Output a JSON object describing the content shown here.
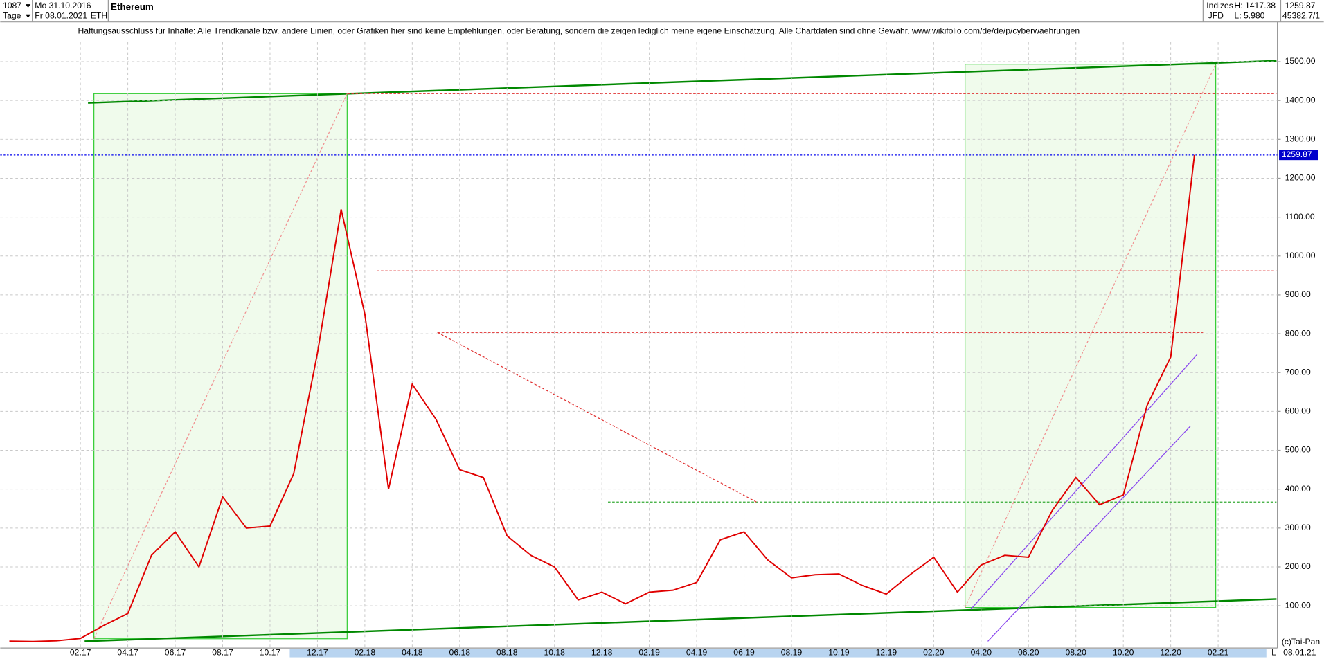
{
  "header": {
    "count": "1087",
    "period": "Tage",
    "start": "Mo 31.10.2016",
    "end": "Fr 08.01.2021",
    "symbol": "ETH",
    "exchange_group": "Indizes",
    "broker": "JFD",
    "high": "H: 1417.38",
    "low": "L: 5.980",
    "close": "1259.87",
    "volume": "45382.7/1",
    "disclaimer": "Haftungsausschluss für Inhalte: Alle Trendkanäle bzw. andere Linien, oder Grafiken hier sind keine Empfehlungen, oder Beratung, sondern die zeigen lediglich meine eigene Einschätzung. Alle Chartdaten sind ohne Gewähr.  www.wikifolio.com/de/de/p/cyberwaehrungen"
  },
  "footer": {
    "copyright": "(c)Tai-Pan",
    "date": "08.01.21",
    "scale": "L"
  },
  "chart_data": {
    "type": "line",
    "title": "Ethereum",
    "categories": [
      null,
      null,
      null,
      "02.17",
      null,
      "04.17",
      null,
      "06.17",
      null,
      "08.17",
      null,
      "10.17",
      null,
      "12.17",
      null,
      "02.18",
      null,
      "04.18",
      null,
      "06.18",
      null,
      "08.18",
      null,
      "10.18",
      null,
      "12.18",
      null,
      "02.19",
      null,
      "04.19",
      null,
      "06.19",
      null,
      "08.19",
      null,
      "10.19",
      null,
      "12.19",
      null,
      "02.20",
      null,
      "04.20",
      null,
      "06.20",
      null,
      "08.20",
      null,
      "10.20",
      null,
      "12.20",
      null,
      "02.21"
    ],
    "series": [
      {
        "color": "#e00000",
        "values": [
          9,
          8,
          10,
          16,
          50,
          80,
          230,
          290,
          200,
          380,
          300,
          305,
          440,
          750,
          1120,
          850,
          400,
          670,
          580,
          450,
          430,
          280,
          230,
          200,
          115,
          135,
          105,
          135,
          140,
          160,
          270,
          290,
          218,
          172,
          180,
          182,
          152,
          130,
          180,
          225,
          135,
          205,
          230,
          225,
          345,
          430,
          360,
          385,
          615,
          740,
          1259.87,
          null
        ]
      }
    ],
    "current_price": {
      "value": 1259.87,
      "label": "1259.87"
    },
    "ylim": [
      0,
      1550
    ],
    "yticks": [
      {
        "value": 100,
        "label": "100.00"
      },
      {
        "value": 200,
        "label": "200.00"
      },
      {
        "value": 300,
        "label": "300.00"
      },
      {
        "value": 400,
        "label": "400.00"
      },
      {
        "value": 500,
        "label": "500.00"
      },
      {
        "value": 600,
        "label": "600.00"
      },
      {
        "value": 700,
        "label": "700.00"
      },
      {
        "value": 800,
        "label": "800.00"
      },
      {
        "value": 900,
        "label": "900.00"
      },
      {
        "value": 1000,
        "label": "1000.00"
      },
      {
        "value": 1100,
        "label": "1100.00"
      },
      {
        "value": 1200,
        "label": "1200.00"
      },
      {
        "value": 1300,
        "label": "1300.00"
      },
      {
        "value": 1400,
        "label": "1400.00"
      },
      {
        "value": 1500,
        "label": "1500.00"
      }
    ],
    "grid": true
  }
}
